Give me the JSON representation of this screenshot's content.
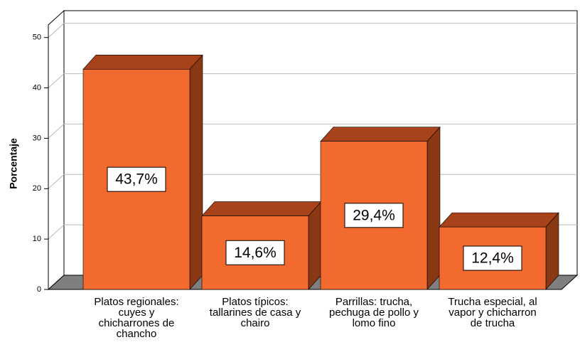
{
  "chart_data": {
    "type": "bar3d",
    "y_label": "Porcentaje",
    "categories": [
      "Platos regionales: cuyes y chicharrones de chancho",
      "Platos típicos: tallarines de casa y chairo",
      "Parrillas: trucha, pechuga de pollo y lomo fino",
      "Trucha especial, al vapor y chicharron de trucha"
    ],
    "values": [
      43.7,
      14.6,
      29.4,
      12.4
    ],
    "value_labels": [
      "43,7%",
      "14,6%",
      "29,4%",
      "12,4%"
    ],
    "color": "#f26a2e",
    "ylim": [
      0,
      52.5
    ],
    "yticks": [
      0,
      10,
      20,
      30,
      40,
      50
    ],
    "grid": true
  }
}
